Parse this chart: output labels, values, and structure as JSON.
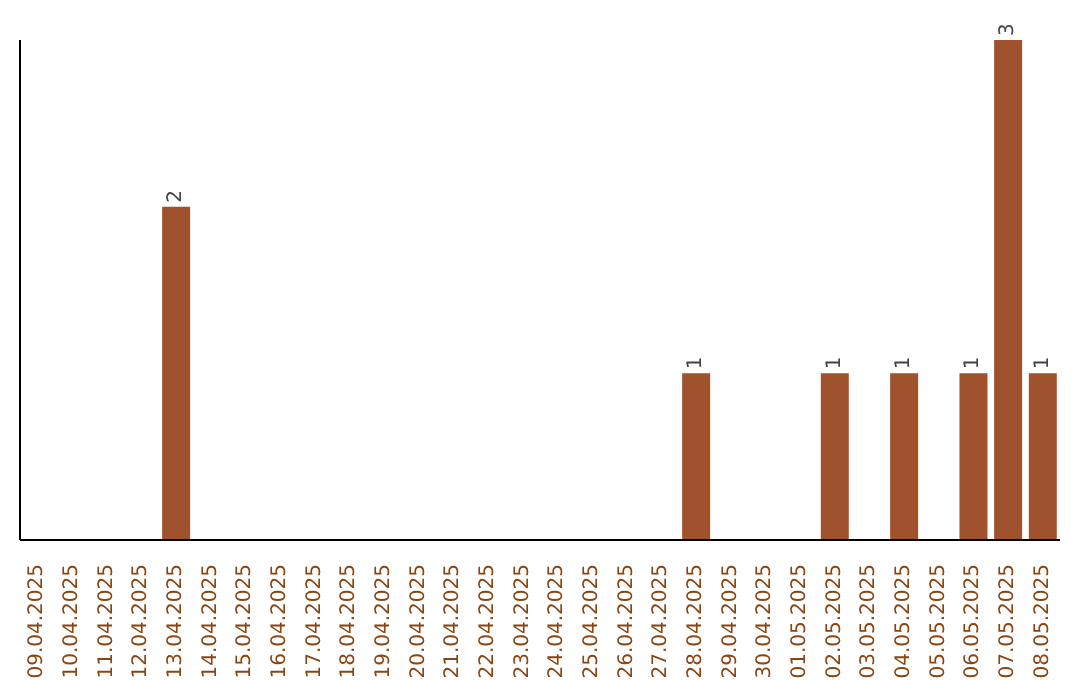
{
  "chart_data": {
    "type": "bar",
    "categories": [
      "09.04.2025",
      "10.04.2025",
      "11.04.2025",
      "12.04.2025",
      "13.04.2025",
      "14.04.2025",
      "15.04.2025",
      "16.04.2025",
      "17.04.2025",
      "18.04.2025",
      "19.04.2025",
      "20.04.2025",
      "21.04.2025",
      "22.04.2025",
      "23.04.2025",
      "24.04.2025",
      "25.04.2025",
      "26.04.2025",
      "27.04.2025",
      "28.04.2025",
      "29.04.2025",
      "30.04.2025",
      "01.05.2025",
      "02.05.2025",
      "03.05.2025",
      "04.05.2025",
      "05.05.2025",
      "06.05.2025",
      "07.05.2025",
      "08.05.2025"
    ],
    "values": [
      0,
      0,
      0,
      0,
      2,
      0,
      0,
      0,
      0,
      0,
      0,
      0,
      0,
      0,
      0,
      0,
      0,
      0,
      0,
      1,
      0,
      0,
      0,
      1,
      0,
      1,
      0,
      1,
      3,
      1
    ],
    "value_labels": [
      null,
      null,
      null,
      null,
      "2",
      null,
      null,
      null,
      null,
      null,
      null,
      null,
      null,
      null,
      null,
      null,
      null,
      null,
      null,
      "1",
      null,
      null,
      null,
      "1",
      null,
      "1",
      null,
      "1",
      "3",
      "1"
    ],
    "color": "#a0522d",
    "ylim": [
      0,
      3
    ],
    "tick_labels": "x"
  }
}
